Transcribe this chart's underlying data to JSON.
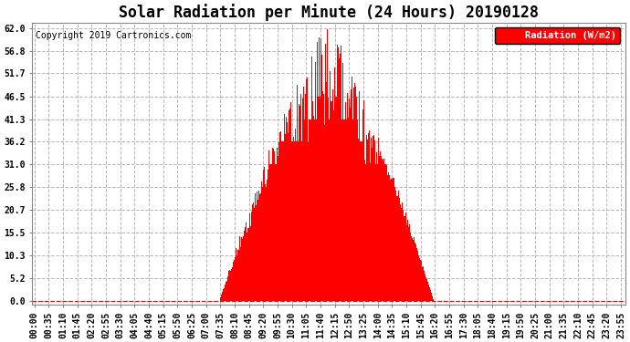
{
  "title": "Solar Radiation per Minute (24 Hours) 20190128",
  "copyright_text": "Copyright 2019 Cartronics.com",
  "legend_label": "Radiation (W/m2)",
  "yticks": [
    0.0,
    5.2,
    10.3,
    15.5,
    20.7,
    25.8,
    31.0,
    36.2,
    41.3,
    46.5,
    51.7,
    56.8,
    62.0
  ],
  "ymax": 62.0,
  "bar_color": "#ff0000",
  "background_color": "#ffffff",
  "grid_color": "#b0b0b0",
  "dashed_zero_color": "#ff0000",
  "legend_bg": "#ff0000",
  "legend_text_color": "#ffffff",
  "title_fontsize": 12,
  "copyright_fontsize": 7,
  "tick_fontsize": 7,
  "sunrise_min": 455,
  "sunset_min": 980,
  "solar_noon_min": 715,
  "peak_value": 62.0
}
